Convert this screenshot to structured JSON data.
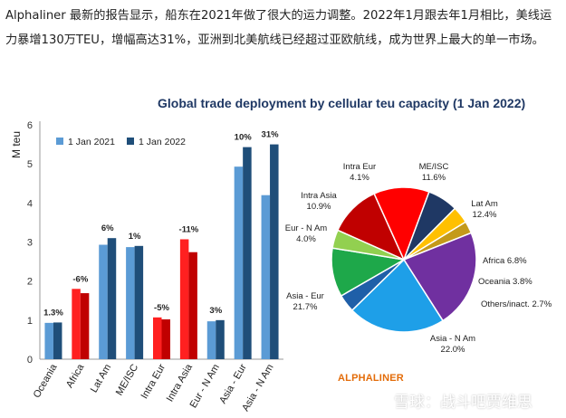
{
  "intro_text": "Alphaliner 最新的报告显示，船东在2021年做了很大的运力调整。2022年1月跟去年1月相比，美线运力暴增130万TEU，增幅高达31%，亚洲到北美航线已经超过亚欧航线，成为世界上最大的单一市场。",
  "chart_title": "Global trade deployment by cellular teu capacity (1 Jan 2022)",
  "brand": "ALPHALINER",
  "watermark": "雪球：战斗吧贾维思",
  "colors": {
    "s2021": "#5b9bd5",
    "s2022": "#1f4e79",
    "red2021": "#ff2020",
    "red2022": "#c00000"
  },
  "chart_data": [
    {
      "type": "bar",
      "ylabel": "M teu",
      "ylim": [
        0,
        6
      ],
      "yticks": [
        "0",
        "1",
        "2",
        "3",
        "4",
        "5",
        "6"
      ],
      "categories": [
        "Oceania",
        "Africa",
        "Lat Am",
        "ME/ISC",
        "Intra Eur",
        "Intra Asia",
        "Eur - N Am",
        "Asia - Eur",
        "Asia - N Am"
      ],
      "series": [
        {
          "name": "1 Jan 2021",
          "values": [
            0.93,
            1.8,
            2.93,
            2.87,
            1.07,
            3.07,
            0.97,
            4.93,
            4.2
          ]
        },
        {
          "name": "1 Jan 2022",
          "values": [
            0.94,
            1.69,
            3.1,
            2.9,
            1.02,
            2.74,
            1.0,
            5.43,
            5.5
          ]
        }
      ],
      "change_labels": [
        "1.3%",
        "-6%",
        "6%",
        "1%",
        "-5%",
        "-11%",
        "3%",
        "10%",
        "31%"
      ],
      "highlight_red": [
        false,
        true,
        false,
        false,
        true,
        true,
        false,
        false,
        false
      ]
    },
    {
      "type": "pie",
      "slices": [
        {
          "label": "ME/ISC",
          "pct": "11.6%",
          "value": 11.6,
          "color": "#c00000"
        },
        {
          "label": "Lat Am",
          "pct": "12.4%",
          "value": 12.4,
          "color": "#ff0000"
        },
        {
          "label": "Africa",
          "pct": "6.8%",
          "value": 6.8,
          "color": "#1f3864"
        },
        {
          "label": "Oceania",
          "pct": "3.8%",
          "value": 3.8,
          "color": "#ffc000"
        },
        {
          "label": "Others/inact.",
          "pct": "2.7%",
          "value": 2.7,
          "color": "#c49a1a"
        },
        {
          "label": "Asia - N Am",
          "pct": "22.0%",
          "value": 22.0,
          "color": "#7030a0"
        },
        {
          "label": "Asia - Eur",
          "pct": "21.7%",
          "value": 21.7,
          "color": "#1e9fe8"
        },
        {
          "label": "Eur - N Am",
          "pct": "4.0%",
          "value": 4.0,
          "color": "#1f5fa8"
        },
        {
          "label": "Intra Asia",
          "pct": "10.9%",
          "value": 10.9,
          "color": "#1ea84a"
        },
        {
          "label": "Intra Eur",
          "pct": "4.1%",
          "value": 4.1,
          "color": "#92d050"
        }
      ]
    }
  ]
}
